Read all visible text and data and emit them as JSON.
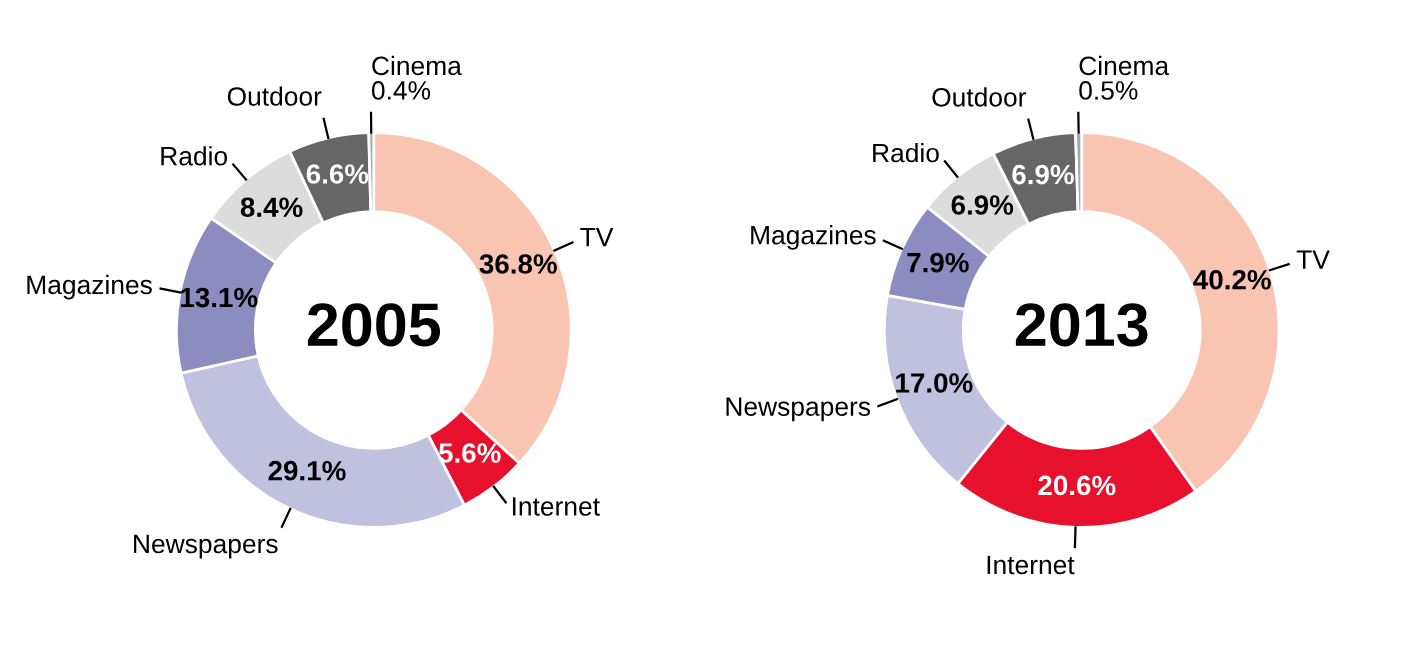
{
  "chart_data": [
    {
      "type": "donut",
      "title": "2005",
      "categories": [
        "TV",
        "Internet",
        "Newspapers",
        "Magazines",
        "Radio",
        "Outdoor",
        "Cinema"
      ],
      "values": [
        36.8,
        5.6,
        29.1,
        13.1,
        8.4,
        6.6,
        0.4
      ],
      "colors": [
        "#f9c4b1",
        "#e8112d",
        "#c0c0df",
        "#8c8cc0",
        "#dcdcdc",
        "#666666",
        "#a6a6a6"
      ],
      "value_labels": [
        "36.8%",
        "5.6%",
        "29.1%",
        "13.1%",
        "8.4%",
        "6.6%",
        "0.4%"
      ],
      "legend": false
    },
    {
      "type": "donut",
      "title": "2013",
      "categories": [
        "TV",
        "Internet",
        "Newspapers",
        "Magazines",
        "Radio",
        "Outdoor",
        "Cinema"
      ],
      "values": [
        40.2,
        20.6,
        17.0,
        7.9,
        6.9,
        6.9,
        0.5
      ],
      "colors": [
        "#f9c4b1",
        "#e8112d",
        "#c0c0df",
        "#8c8cc0",
        "#dcdcdc",
        "#666666",
        "#a6a6a6"
      ],
      "value_labels": [
        "40.2%",
        "20.6%",
        "17.0%",
        "7.9%",
        "6.9%",
        "6.9%",
        "0.5%"
      ],
      "legend": false
    }
  ]
}
